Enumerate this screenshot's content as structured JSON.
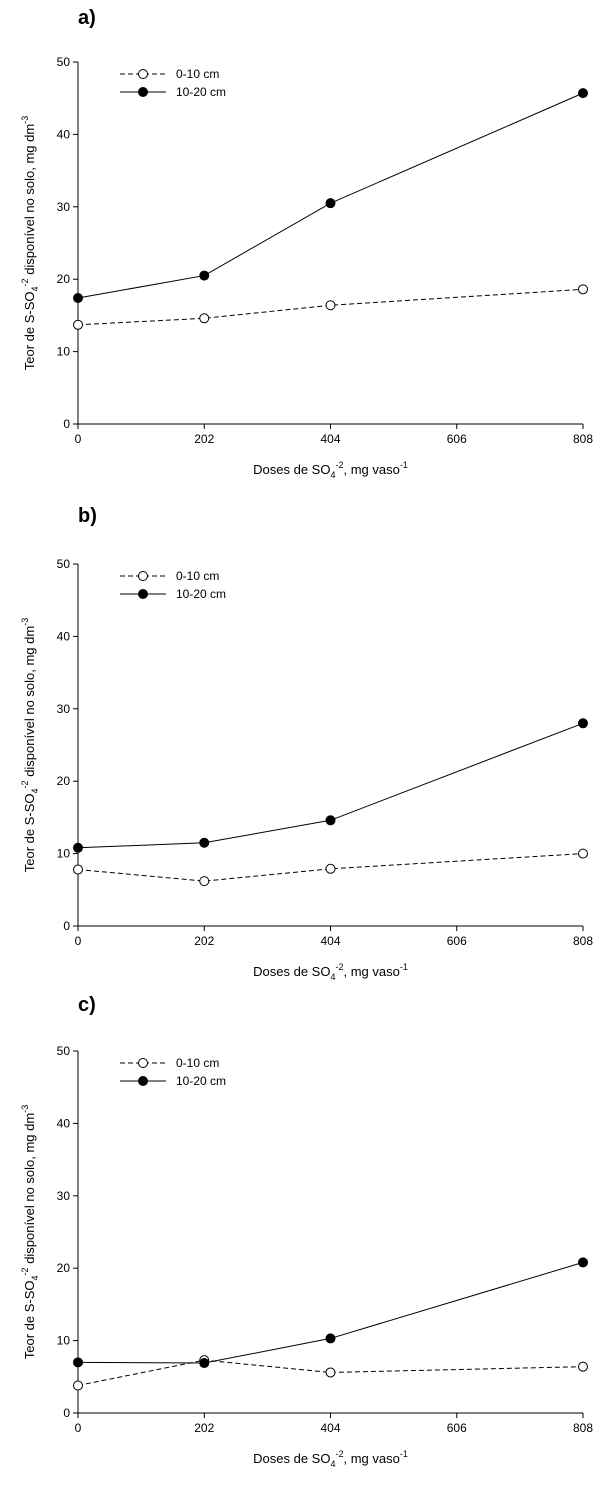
{
  "chart_data": [
    {
      "type": "line",
      "panel_label": "a)",
      "xlabel": {
        "main": "Doses de SO",
        "sub": "4",
        "sup": "-2",
        "tail": ", mg vaso",
        "sup2": "-1"
      },
      "ylabel": {
        "main": "Teor de S-SO",
        "sub": "4",
        "sup": "-2",
        "tail": " disponível no solo, mg dm",
        "sup2": "-3"
      },
      "x_ticks": [
        0,
        202,
        404,
        606,
        808
      ],
      "y_ticks": [
        0,
        10,
        20,
        30,
        40,
        50
      ],
      "xlim": [
        0,
        808
      ],
      "ylim": [
        0,
        50
      ],
      "legend_position": "top-left",
      "series": [
        {
          "name": "0-10 cm",
          "marker": "open-circle",
          "line": "dashed",
          "x": [
            0,
            202,
            404,
            808
          ],
          "y": [
            13.7,
            14.6,
            16.4,
            18.6
          ]
        },
        {
          "name": "10-20 cm",
          "marker": "filled-circle",
          "line": "solid",
          "x": [
            0,
            202,
            404,
            808
          ],
          "y": [
            17.4,
            20.5,
            30.5,
            45.7
          ]
        }
      ]
    },
    {
      "type": "line",
      "panel_label": "b)",
      "xlabel": {
        "main": "Doses de SO",
        "sub": "4",
        "sup": "-2",
        "tail": ", mg vaso",
        "sup2": "-1"
      },
      "ylabel": {
        "main": "Teor de S-SO",
        "sub": "4",
        "sup": "-2",
        "tail": " disponível no solo, mg dm",
        "sup2": "-3"
      },
      "x_ticks": [
        0,
        202,
        404,
        606,
        808
      ],
      "y_ticks": [
        0,
        10,
        20,
        30,
        40,
        50
      ],
      "xlim": [
        0,
        808
      ],
      "ylim": [
        0,
        50
      ],
      "legend_position": "top-left",
      "series": [
        {
          "name": "0-10 cm",
          "marker": "open-circle",
          "line": "dashed",
          "x": [
            0,
            202,
            404,
            808
          ],
          "y": [
            7.8,
            6.2,
            7.9,
            10.0
          ]
        },
        {
          "name": "10-20 cm",
          "marker": "filled-circle",
          "line": "solid",
          "x": [
            0,
            202,
            404,
            808
          ],
          "y": [
            10.8,
            11.5,
            14.6,
            28.0
          ]
        }
      ]
    },
    {
      "type": "line",
      "panel_label": "c)",
      "xlabel": {
        "main": "Doses de SO",
        "sub": "4",
        "sup": "-2",
        "tail": ", mg vaso",
        "sup2": "-1"
      },
      "ylabel": {
        "main": "Teor de S-SO",
        "sub": "4",
        "sup": "-2",
        "tail": " disponível no solo, mg dm",
        "sup2": "-3"
      },
      "x_ticks": [
        0,
        202,
        404,
        606,
        808
      ],
      "y_ticks": [
        0,
        10,
        20,
        30,
        40,
        50
      ],
      "xlim": [
        0,
        808
      ],
      "ylim": [
        0,
        50
      ],
      "legend_position": "top-left",
      "series": [
        {
          "name": "0-10 cm",
          "marker": "open-circle",
          "line": "dashed",
          "x": [
            0,
            202,
            404,
            808
          ],
          "y": [
            3.8,
            7.3,
            5.6,
            6.4
          ]
        },
        {
          "name": "10-20 cm",
          "marker": "filled-circle",
          "line": "solid",
          "x": [
            0,
            202,
            404,
            808
          ],
          "y": [
            7.0,
            6.9,
            10.3,
            20.8
          ]
        }
      ]
    }
  ]
}
